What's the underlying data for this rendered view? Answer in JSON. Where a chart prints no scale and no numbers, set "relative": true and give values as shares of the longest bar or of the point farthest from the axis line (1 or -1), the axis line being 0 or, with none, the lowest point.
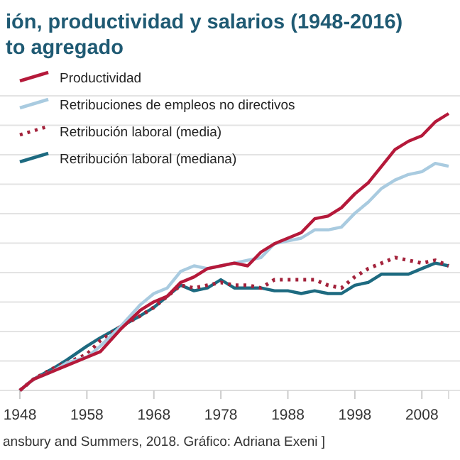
{
  "chart_data": {
    "type": "line",
    "title": "ión, productividad y salarios (1948-2016)",
    "subtitle": "to agregado",
    "relative": true,
    "grid": true,
    "legend": "top left",
    "line_style": "solid",
    "marker": "none",
    "x": [
      1948,
      1950,
      1953,
      1955,
      1958,
      1960,
      1963,
      1966,
      1968,
      1970,
      1972,
      1974,
      1976,
      1978,
      1980,
      1982,
      1984,
      1986,
      1988,
      1990,
      1992,
      1994,
      1996,
      1998,
      2000,
      2002,
      2004,
      2006,
      2008,
      2010,
      2012
    ],
    "xlim": [
      1948,
      2012
    ],
    "xticks": [
      1948,
      1958,
      1968,
      1978,
      1988,
      1998,
      2008
    ],
    "series": [
      {
        "name": "Productividad",
        "color": "#b5193a",
        "values": [
          0,
          0.04,
          0.07,
          0.09,
          0.12,
          0.14,
          0.22,
          0.29,
          0.32,
          0.34,
          0.39,
          0.41,
          0.44,
          0.45,
          0.46,
          0.45,
          0.5,
          0.53,
          0.55,
          0.57,
          0.62,
          0.63,
          0.66,
          0.71,
          0.75,
          0.81,
          0.87,
          0.9,
          0.92,
          0.97,
          1
        ]
      },
      {
        "name": "Retribuciones de empleos no directivos",
        "color": "#a9cbe0",
        "values": [
          0,
          0.04,
          0.07,
          0.1,
          0.12,
          0.16,
          0.23,
          0.31,
          0.35,
          0.37,
          0.43,
          0.45,
          0.44,
          0.45,
          0.46,
          0.47,
          0.48,
          0.53,
          0.54,
          0.55,
          0.58,
          0.58,
          0.59,
          0.64,
          0.68,
          0.73,
          0.76,
          0.78,
          0.79,
          0.82,
          0.81
        ]
      },
      {
        "name": "Retribución laboral (media)",
        "color": "#a3223b",
        "line_style": "dotted",
        "values": [
          0,
          0.04,
          0.08,
          0.1,
          0.13,
          0.18,
          0.23,
          0.27,
          0.3,
          0.34,
          0.38,
          0.37,
          0.38,
          0.39,
          0.38,
          0.38,
          0.37,
          0.4,
          0.4,
          0.4,
          0.4,
          0.38,
          0.37,
          0.41,
          0.44,
          0.46,
          0.48,
          0.47,
          0.46,
          0.47,
          0.45
        ]
      },
      {
        "name": "Retribución laboral (mediana)",
        "color": "#1d6a80",
        "values": [
          0,
          0.04,
          0.08,
          0.11,
          0.16,
          0.19,
          0.23,
          0.27,
          0.3,
          0.34,
          0.38,
          0.36,
          0.37,
          0.4,
          0.37,
          0.37,
          0.37,
          0.36,
          0.36,
          0.35,
          0.36,
          0.35,
          0.35,
          0.38,
          0.39,
          0.42,
          0.42,
          0.42,
          0.44,
          0.46,
          0.45
        ]
      }
    ],
    "annotations": [
      "ansbury and Summers, 2018. Gráfico: Adriana Exeni ]"
    ]
  }
}
